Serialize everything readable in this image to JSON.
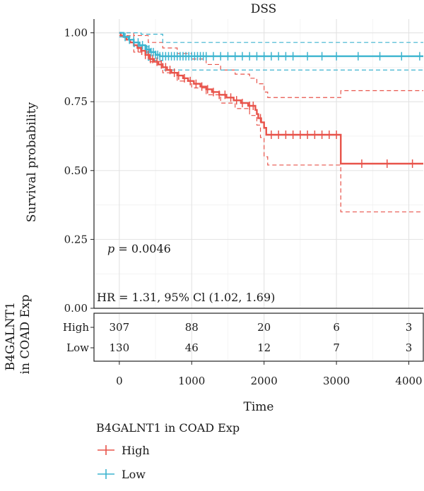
{
  "chart_data": {
    "type": "line",
    "subtype": "kaplan-meier",
    "title": "DSS",
    "xlabel": "Time",
    "ylabel": "Survival probability",
    "xlim": [
      -350,
      4200
    ],
    "ylim": [
      0,
      1.05
    ],
    "xticks": [
      "0",
      "1000",
      "2000",
      "3000",
      "4000"
    ],
    "yticks": [
      "0.00",
      "0.25",
      "0.50",
      "0.75",
      "1.00"
    ],
    "grid": true,
    "pvalue": {
      "prefix": "p",
      "text": " = 0.0046"
    },
    "hr_text": "HR = 1.31, 95% Cl (1.02, 1.69)",
    "risk_table_label": [
      "B4GALNT1",
      "in COAD Exp"
    ],
    "legend": {
      "title": "B4GALNT1 in COAD Exp",
      "placement": "bottom"
    },
    "series": [
      {
        "name": "High",
        "color": "#e8534a",
        "steps": [
          [
            0,
            1.0
          ],
          [
            20,
            0.99
          ],
          [
            60,
            0.985
          ],
          [
            100,
            0.975
          ],
          [
            150,
            0.965
          ],
          [
            200,
            0.955
          ],
          [
            250,
            0.945
          ],
          [
            300,
            0.935
          ],
          [
            360,
            0.92
          ],
          [
            420,
            0.905
          ],
          [
            480,
            0.895
          ],
          [
            540,
            0.885
          ],
          [
            600,
            0.875
          ],
          [
            660,
            0.865
          ],
          [
            720,
            0.855
          ],
          [
            800,
            0.845
          ],
          [
            880,
            0.835
          ],
          [
            950,
            0.825
          ],
          [
            1030,
            0.815
          ],
          [
            1120,
            0.805
          ],
          [
            1200,
            0.795
          ],
          [
            1280,
            0.785
          ],
          [
            1380,
            0.775
          ],
          [
            1480,
            0.765
          ],
          [
            1580,
            0.755
          ],
          [
            1680,
            0.745
          ],
          [
            1780,
            0.735
          ],
          [
            1880,
            0.72
          ],
          [
            1900,
            0.705
          ],
          [
            1920,
            0.69
          ],
          [
            1960,
            0.675
          ],
          [
            2000,
            0.655
          ],
          [
            2030,
            0.63
          ],
          [
            3050,
            0.63
          ],
          [
            3060,
            0.525
          ],
          [
            4200,
            0.525
          ]
        ],
        "ci_upper": [
          [
            0,
            1.0
          ],
          [
            200,
            0.99
          ],
          [
            400,
            0.965
          ],
          [
            600,
            0.945
          ],
          [
            800,
            0.925
          ],
          [
            1000,
            0.905
          ],
          [
            1200,
            0.885
          ],
          [
            1400,
            0.865
          ],
          [
            1600,
            0.85
          ],
          [
            1800,
            0.835
          ],
          [
            1900,
            0.815
          ],
          [
            2000,
            0.785
          ],
          [
            2050,
            0.765
          ],
          [
            3050,
            0.765
          ],
          [
            3060,
            0.79
          ],
          [
            4200,
            0.79
          ]
        ],
        "ci_lower": [
          [
            0,
            0.99
          ],
          [
            200,
            0.93
          ],
          [
            400,
            0.895
          ],
          [
            600,
            0.855
          ],
          [
            800,
            0.825
          ],
          [
            1000,
            0.8
          ],
          [
            1200,
            0.775
          ],
          [
            1400,
            0.745
          ],
          [
            1600,
            0.725
          ],
          [
            1800,
            0.7
          ],
          [
            1900,
            0.665
          ],
          [
            1950,
            0.62
          ],
          [
            2000,
            0.55
          ],
          [
            2050,
            0.52
          ],
          [
            3050,
            0.52
          ],
          [
            3060,
            0.35
          ],
          [
            4200,
            0.35
          ]
        ],
        "censor_x": [
          260,
          310,
          360,
          400,
          430,
          460,
          520,
          580,
          640,
          700,
          760,
          820,
          900,
          980,
          1060,
          1140,
          1220,
          1300,
          1380,
          1460,
          1540,
          1620,
          1700,
          1800,
          1850,
          1950,
          2100,
          2200,
          2300,
          2400,
          2500,
          2600,
          2700,
          2800,
          2900,
          3000,
          3350,
          3700,
          4050
        ],
        "risk_counts": [
          "307",
          "88",
          "20",
          "6",
          "3"
        ]
      },
      {
        "name": "Low",
        "color": "#3cb4cf",
        "steps": [
          [
            0,
            1.0
          ],
          [
            60,
            0.985
          ],
          [
            130,
            0.975
          ],
          [
            200,
            0.965
          ],
          [
            280,
            0.955
          ],
          [
            360,
            0.94
          ],
          [
            430,
            0.93
          ],
          [
            500,
            0.92
          ],
          [
            560,
            0.915
          ],
          [
            4200,
            0.915
          ]
        ],
        "ci_upper": [
          [
            0,
            1.0
          ],
          [
            300,
            0.995
          ],
          [
            600,
            0.965
          ],
          [
            4200,
            0.965
          ]
        ],
        "ci_lower": [
          [
            0,
            0.985
          ],
          [
            200,
            0.95
          ],
          [
            400,
            0.9
          ],
          [
            600,
            0.865
          ],
          [
            4200,
            0.865
          ]
        ],
        "censor_x": [
          80,
          140,
          200,
          260,
          320,
          380,
          410,
          440,
          470,
          500,
          530,
          560,
          600,
          640,
          680,
          720,
          760,
          800,
          840,
          880,
          920,
          960,
          1000,
          1040,
          1080,
          1120,
          1160,
          1200,
          1300,
          1400,
          1500,
          1600,
          1700,
          1800,
          1900,
          2000,
          2100,
          2200,
          2300,
          2400,
          2600,
          2800,
          3000,
          3300,
          3600,
          3900,
          4150
        ],
        "risk_counts": [
          "130",
          "46",
          "12",
          "7",
          "3"
        ]
      }
    ],
    "risk_times": [
      0,
      1000,
      2000,
      3000,
      4000
    ]
  }
}
